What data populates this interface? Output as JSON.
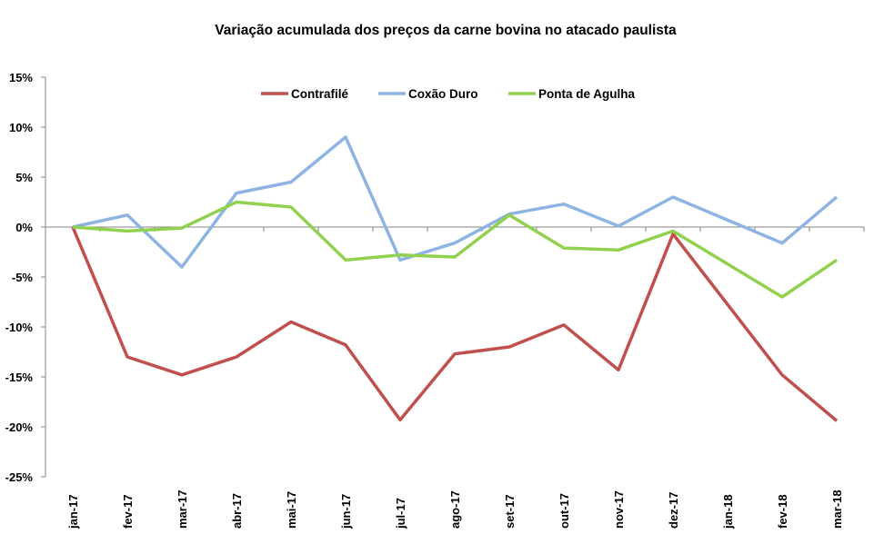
{
  "chart_data": {
    "type": "line",
    "title": "Variação acumulada dos preços da carne bovina no atacado paulista",
    "xlabel": "",
    "ylabel": "",
    "ylim": [
      -25,
      15
    ],
    "yticks": [
      15,
      10,
      5,
      0,
      -5,
      -10,
      -15,
      -20,
      -25
    ],
    "ytick_labels": [
      "15%",
      "10%",
      "5%",
      "0%",
      "-5%",
      "-10%",
      "-15%",
      "-20%",
      "-25%"
    ],
    "categories": [
      "jan-17",
      "fev-17",
      "mar-17",
      "abr-17",
      "mai-17",
      "jun-17",
      "jul-17",
      "ago-17",
      "set-17",
      "out-17",
      "nov-17",
      "dez-17",
      "jan-18",
      "fev-18",
      "mar-18"
    ],
    "grid": false,
    "legend_position": "top-center",
    "series": [
      {
        "name": "Contrafilé",
        "color": "#C0504D",
        "values": [
          0,
          -13.0,
          -14.8,
          -13.0,
          -9.5,
          -11.8,
          -19.3,
          -12.7,
          -12.0,
          -9.8,
          -14.3,
          -0.7,
          null,
          -14.8,
          -19.4
        ]
      },
      {
        "name": "Coxão Duro",
        "color": "#8DB4E2",
        "values": [
          0,
          1.2,
          -4.0,
          3.4,
          4.5,
          9.0,
          -3.3,
          -1.6,
          1.3,
          2.3,
          0.1,
          3.0,
          null,
          -1.6,
          3.0
        ]
      },
      {
        "name": "Ponta de Agulha",
        "color": "#92D050",
        "values": [
          0,
          -0.4,
          -0.1,
          2.5,
          2.0,
          -3.3,
          -2.8,
          -3.0,
          1.2,
          -2.1,
          -2.3,
          -0.4,
          null,
          -7.0,
          -3.3
        ]
      }
    ]
  }
}
